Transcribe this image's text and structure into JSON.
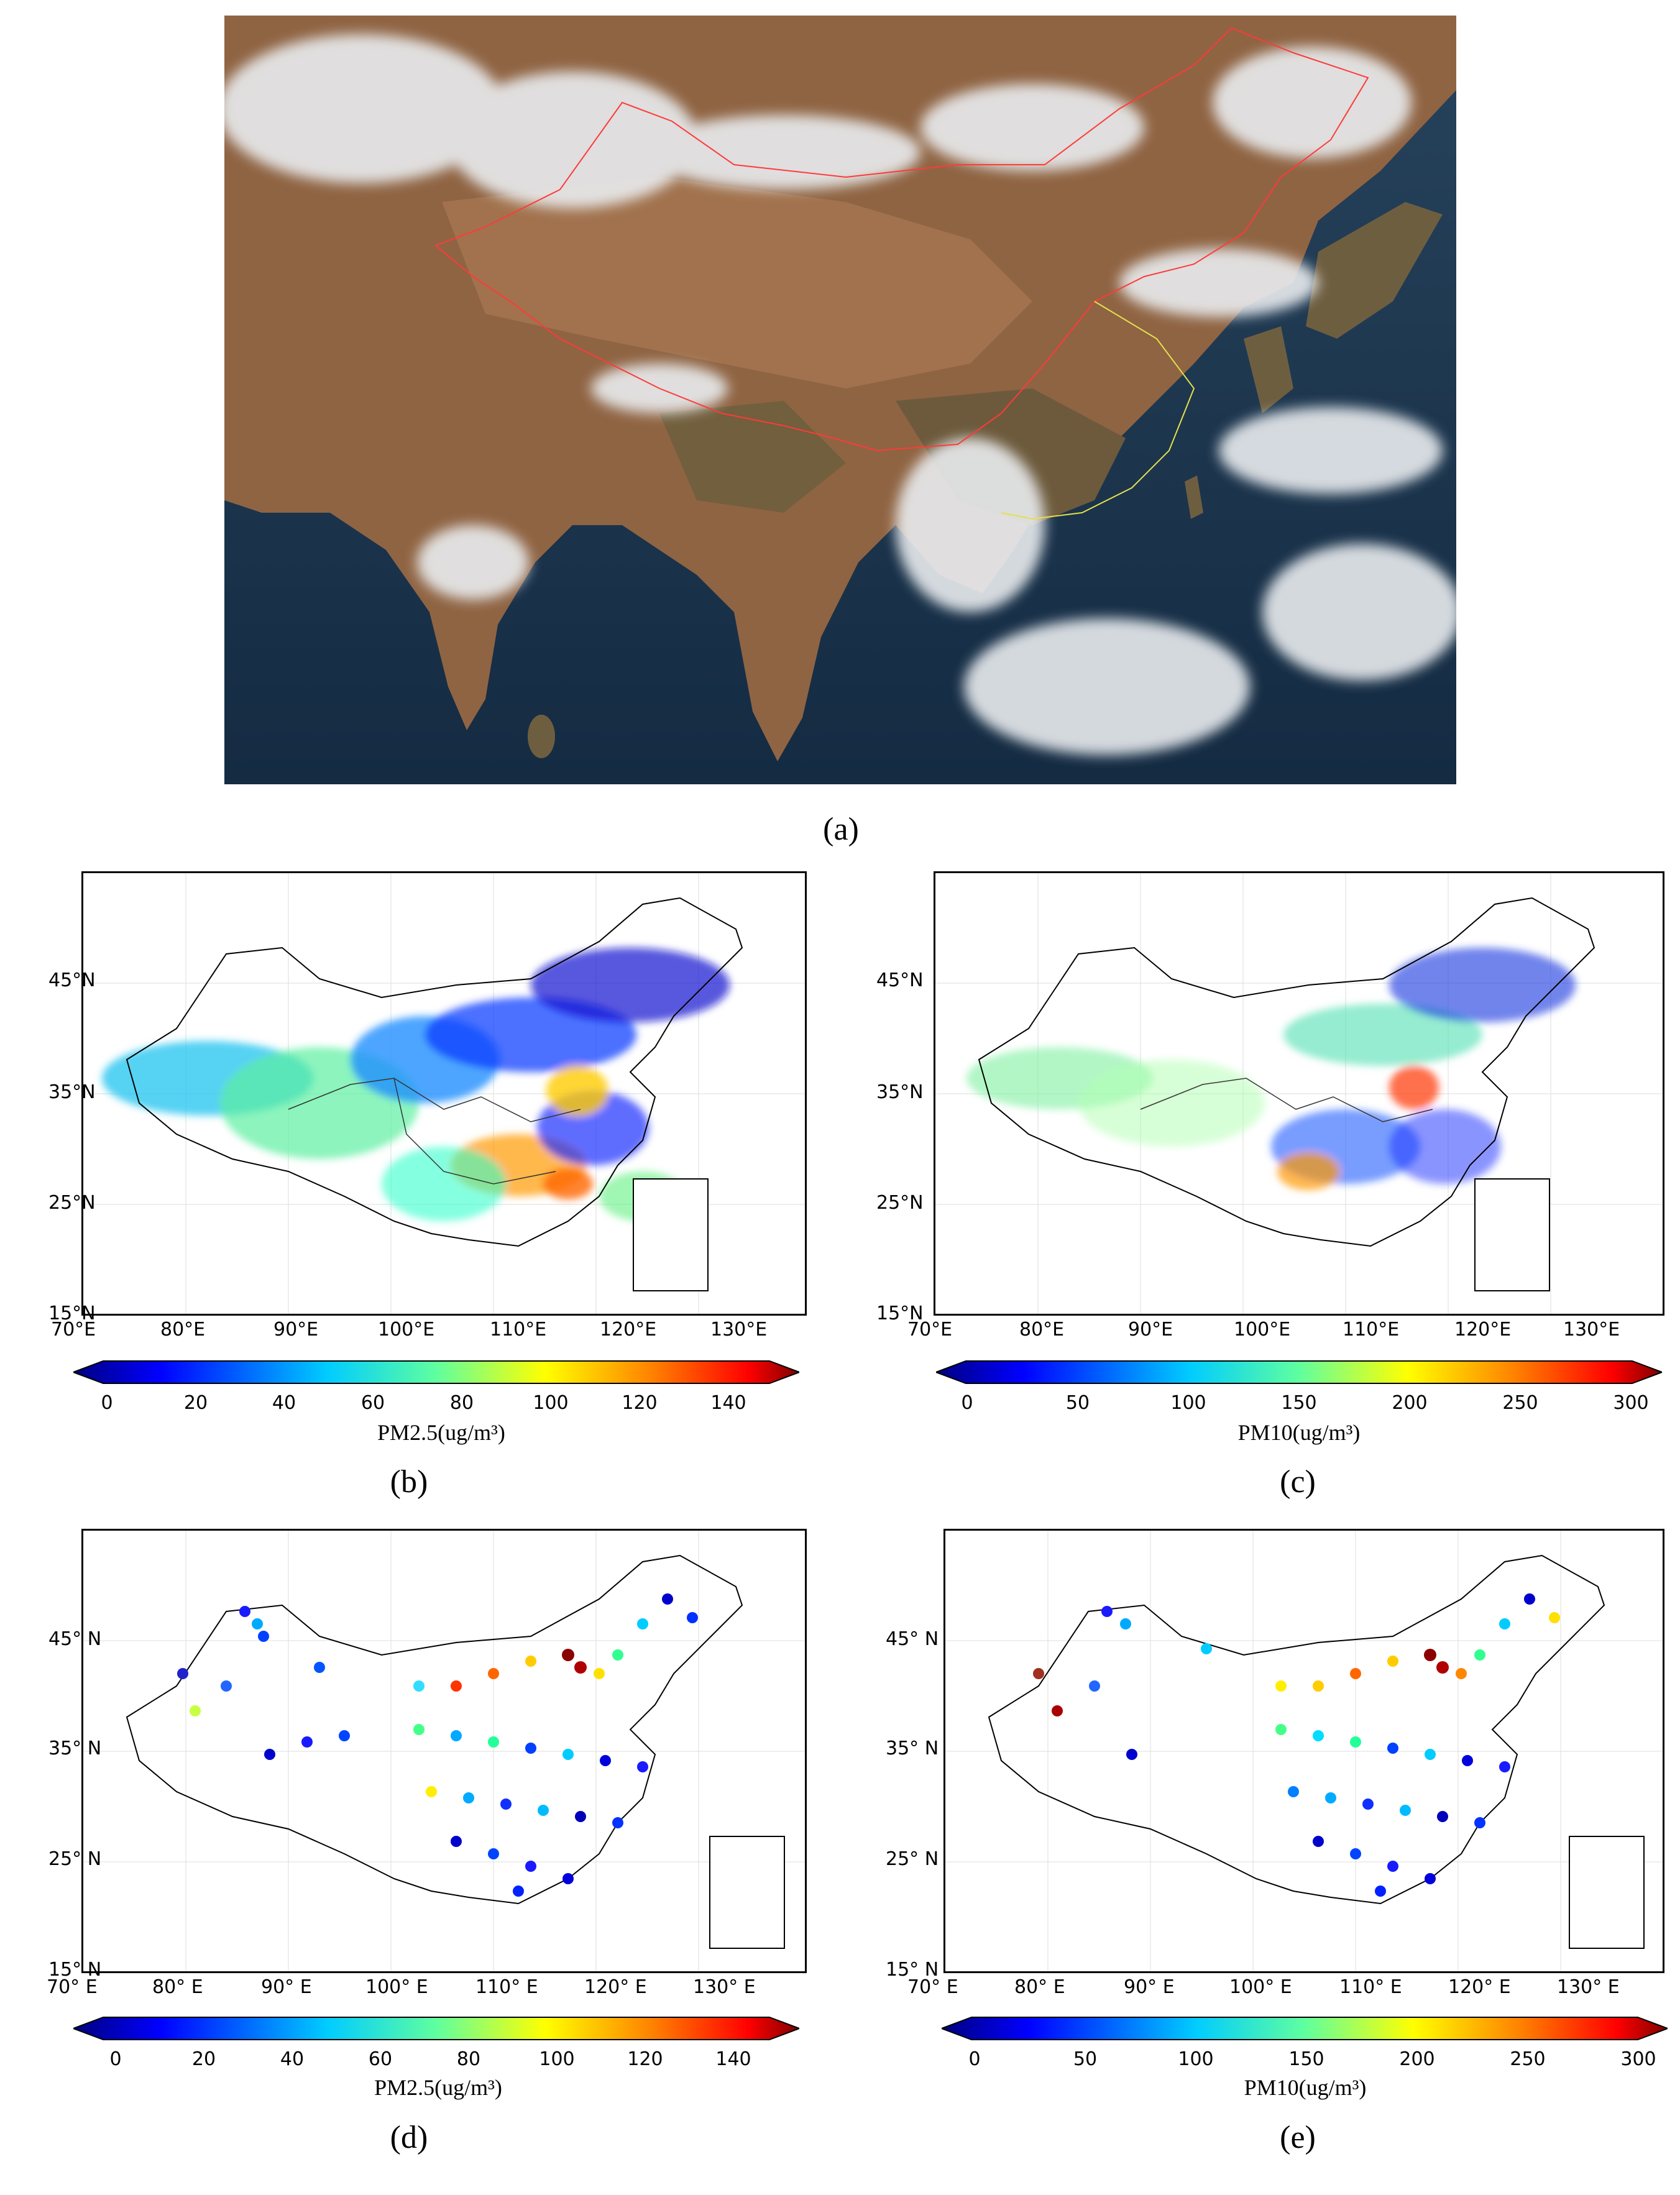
{
  "panels": {
    "a": {
      "label": "(a)"
    },
    "b": {
      "label": "(b)",
      "cbar_title": "PM2.5(ug/m³)",
      "cbar_ticks": [
        "0",
        "20",
        "40",
        "60",
        "80",
        "100",
        "120",
        "140"
      ],
      "lat_ticks": [
        "45°N",
        "35°N",
        "25°N",
        "15°N"
      ],
      "lon_ticks": [
        "70°E",
        "80°E",
        "90°E",
        "100°E",
        "110°E",
        "120°E",
        "130°E"
      ]
    },
    "c": {
      "label": "(c)",
      "cbar_title": "PM10(ug/m³)",
      "cbar_ticks": [
        "0",
        "50",
        "100",
        "150",
        "200",
        "250",
        "300"
      ],
      "lat_ticks": [
        "45°N",
        "35°N",
        "25°N",
        "15°N"
      ],
      "lon_ticks": [
        "70°E",
        "80°E",
        "90°E",
        "100°E",
        "110°E",
        "120°E",
        "130°E"
      ]
    },
    "d": {
      "label": "(d)",
      "cbar_title": "PM2.5(ug/m³)",
      "cbar_ticks": [
        "0",
        "20",
        "40",
        "60",
        "80",
        "100",
        "120",
        "140"
      ],
      "lat_ticks": [
        "45° N",
        "35° N",
        "25° N",
        "15° N"
      ],
      "lon_ticks": [
        "70° E",
        "80° E",
        "90° E",
        "100° E",
        "110° E",
        "120° E",
        "130° E"
      ]
    },
    "e": {
      "label": "(e)",
      "cbar_title": "PM10(ug/m³)",
      "cbar_ticks": [
        "0",
        "50",
        "100",
        "150",
        "200",
        "250",
        "300"
      ],
      "lat_ticks": [
        "45° N",
        "35° N",
        "25° N",
        "15° N"
      ],
      "lon_ticks": [
        "70° E",
        "80° E",
        "90° E",
        "100° E",
        "110° E",
        "120° E",
        "130° E"
      ]
    }
  },
  "colors": {
    "jet": [
      "#00007f",
      "#0000ff",
      "#007fff",
      "#00ffff",
      "#7fff7f",
      "#ffff00",
      "#ff7f00",
      "#ff0000",
      "#7f0000"
    ],
    "ocean": "#1b3550",
    "land": "#9a6a48",
    "cloud": "#e9ecef",
    "border_red": "#ff3030"
  }
}
